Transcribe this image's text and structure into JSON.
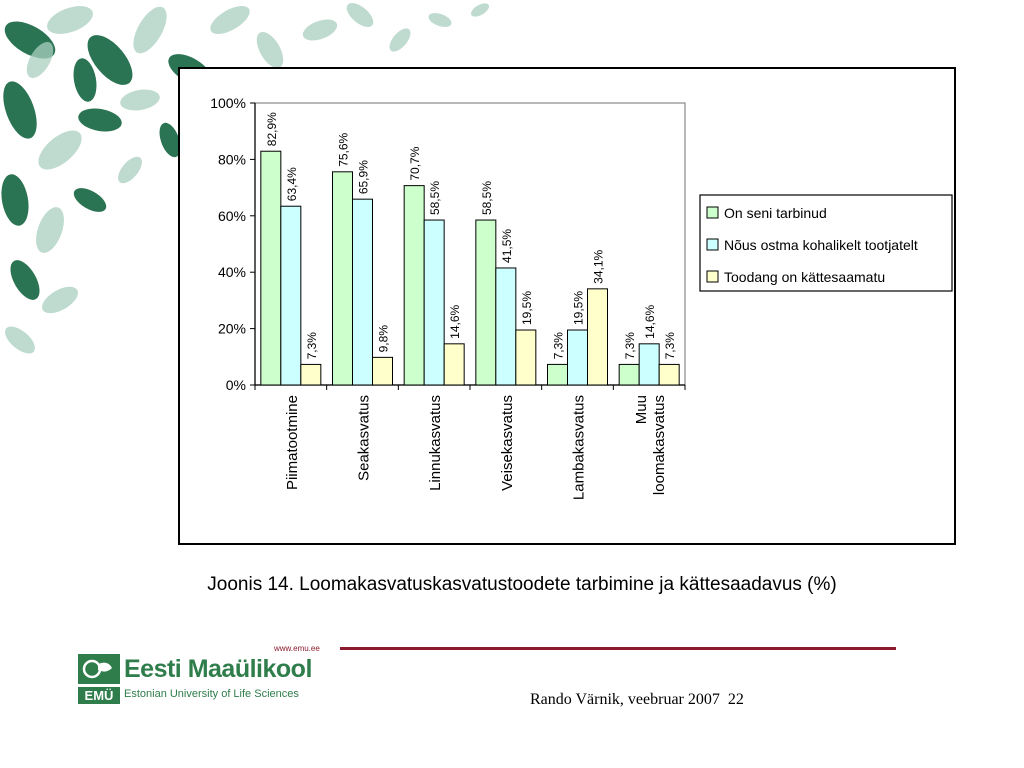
{
  "caption": "Joonis 14. Loomakasvatuskasvatustoodete tarbimine ja kättesaadavus (%)",
  "author": "Rando Värnik, veebruar 2007",
  "page_number": "22",
  "logo": {
    "url": "www.emu.ee",
    "name": "Eesti Maaülikool",
    "subtitle": "Estonian University of Life Sciences",
    "mark_text": "EMÜ"
  },
  "colors": {
    "series": [
      "#ccffcc",
      "#ccffff",
      "#ffffcc"
    ],
    "footer_line": "#8b1a2e",
    "logo_green": "#2e7d4a",
    "leaf_dark": "#1f6b4a",
    "leaf_light": "#a9cfbf"
  },
  "chart_data": {
    "type": "bar",
    "categories": [
      [
        "Piimatootmine"
      ],
      [
        "Seakasvatus"
      ],
      [
        "Linnukasvatus"
      ],
      [
        "Veisekasvatus"
      ],
      [
        "Lambakasvatus"
      ],
      [
        "Muu",
        "loomakasvatus"
      ]
    ],
    "series": [
      {
        "name": "On seni tarbinud",
        "values": [
          82.9,
          75.6,
          70.7,
          58.5,
          7.3,
          7.3
        ],
        "labels": [
          "82,9%",
          "75,6%",
          "70,7%",
          "58,5%",
          "7,3%",
          "7,3%"
        ]
      },
      {
        "name": "Nõus ostma kohalikelt tootjatelt",
        "values": [
          63.4,
          65.9,
          58.5,
          41.5,
          19.5,
          14.6
        ],
        "labels": [
          "63,4%",
          "65,9%",
          "58,5%",
          "41,5%",
          "19,5%",
          "14,6%"
        ]
      },
      {
        "name": "Toodang on kättesaamatu",
        "values": [
          7.3,
          9.8,
          14.6,
          19.5,
          34.1,
          7.3
        ],
        "labels": [
          "7,3%",
          "9,8%",
          "14,6%",
          "19,5%",
          "34,1%",
          "7,3%"
        ]
      }
    ],
    "yticks": [
      "0%",
      "20%",
      "40%",
      "60%",
      "80%",
      "100%"
    ],
    "ylim": [
      0,
      100
    ],
    "grid": false,
    "legend_position": "right"
  }
}
